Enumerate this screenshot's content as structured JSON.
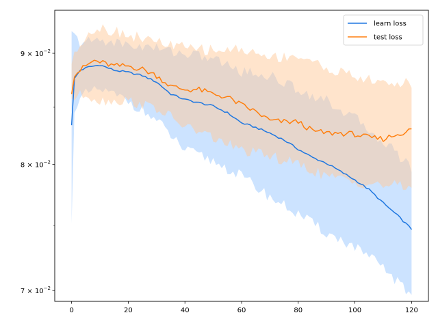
{
  "chart_data": {
    "type": "line",
    "title": "",
    "xlabel": "",
    "ylabel": "",
    "yscale": "log",
    "xlim": [
      -5.95,
      125.95
    ],
    "ylim": [
      0.0692,
      0.0942
    ],
    "x_ticks": [
      0,
      20,
      40,
      60,
      80,
      100,
      120
    ],
    "x_tick_labels": [
      "0",
      "20",
      "40",
      "60",
      "80",
      "100",
      "120"
    ],
    "y_ticks": [
      0.07,
      0.08,
      0.09
    ],
    "y_tick_labels": [
      {
        "mantissa": "7",
        "exponent": "−2"
      },
      {
        "mantissa": "8",
        "exponent": "−2"
      },
      {
        "mantissa": "9",
        "exponent": "−2"
      }
    ],
    "legend_position": "top-right",
    "grid": false,
    "x_count": 120,
    "series": [
      {
        "name": "learn loss",
        "color": "#1f77e0",
        "band_color": "#99c8ff",
        "keypoints": [
          [
            0,
            0.0834
          ],
          [
            1,
            0.0876
          ],
          [
            3,
            0.0884
          ],
          [
            6,
            0.0887
          ],
          [
            10,
            0.0889
          ],
          [
            15,
            0.0884
          ],
          [
            20,
            0.0882
          ],
          [
            25,
            0.0879
          ],
          [
            30,
            0.0873
          ],
          [
            35,
            0.0862
          ],
          [
            40,
            0.0857
          ],
          [
            45,
            0.0854
          ],
          [
            50,
            0.0851
          ],
          [
            55,
            0.0845
          ],
          [
            60,
            0.0836
          ],
          [
            65,
            0.0832
          ],
          [
            70,
            0.0827
          ],
          [
            75,
            0.0821
          ],
          [
            80,
            0.0813
          ],
          [
            85,
            0.0806
          ],
          [
            90,
            0.0801
          ],
          [
            95,
            0.0794
          ],
          [
            100,
            0.0787
          ],
          [
            105,
            0.0779
          ],
          [
            110,
            0.0768
          ],
          [
            115,
            0.0758
          ],
          [
            120,
            0.0747
          ]
        ],
        "lower_keypoints": [
          [
            0,
            0.0749
          ],
          [
            1,
            0.085
          ],
          [
            5,
            0.0862
          ],
          [
            10,
            0.0866
          ],
          [
            20,
            0.0856
          ],
          [
            30,
            0.0838
          ],
          [
            40,
            0.0812
          ],
          [
            50,
            0.0803
          ],
          [
            60,
            0.079
          ],
          [
            70,
            0.0773
          ],
          [
            80,
            0.0759
          ],
          [
            90,
            0.0744
          ],
          [
            100,
            0.0733
          ],
          [
            110,
            0.0717
          ],
          [
            120,
            0.0696
          ]
        ],
        "upper_keypoints": [
          [
            0,
            0.0919
          ],
          [
            3,
            0.091
          ],
          [
            10,
            0.0913
          ],
          [
            20,
            0.0908
          ],
          [
            30,
            0.0905
          ],
          [
            40,
            0.09
          ],
          [
            50,
            0.0895
          ],
          [
            60,
            0.0883
          ],
          [
            70,
            0.0879
          ],
          [
            80,
            0.0866
          ],
          [
            90,
            0.0856
          ],
          [
            100,
            0.084
          ],
          [
            110,
            0.082
          ],
          [
            120,
            0.0798
          ]
        ]
      },
      {
        "name": "test loss",
        "color": "#ff7f0e",
        "band_color": "#ffc99a",
        "keypoints": [
          [
            0,
            0.0862
          ],
          [
            1,
            0.088
          ],
          [
            5,
            0.0888
          ],
          [
            8,
            0.0893
          ],
          [
            15,
            0.0888
          ],
          [
            20,
            0.0888
          ],
          [
            25,
            0.0885
          ],
          [
            30,
            0.0879
          ],
          [
            35,
            0.0869
          ],
          [
            40,
            0.0866
          ],
          [
            45,
            0.0866
          ],
          [
            50,
            0.0862
          ],
          [
            55,
            0.0859
          ],
          [
            60,
            0.0852
          ],
          [
            65,
            0.0846
          ],
          [
            70,
            0.0838
          ],
          [
            75,
            0.0837
          ],
          [
            80,
            0.0837
          ],
          [
            85,
            0.0829
          ],
          [
            90,
            0.0827
          ],
          [
            95,
            0.0827
          ],
          [
            100,
            0.0826
          ],
          [
            105,
            0.0823
          ],
          [
            110,
            0.0822
          ],
          [
            115,
            0.0826
          ],
          [
            120,
            0.083
          ]
        ],
        "lower_keypoints": [
          [
            0,
            0.0858
          ],
          [
            5,
            0.0862
          ],
          [
            10,
            0.0856
          ],
          [
            20,
            0.0856
          ],
          [
            30,
            0.0849
          ],
          [
            40,
            0.0833
          ],
          [
            50,
            0.0823
          ],
          [
            60,
            0.0812
          ],
          [
            70,
            0.0807
          ],
          [
            80,
            0.08
          ],
          [
            90,
            0.079
          ],
          [
            100,
            0.0785
          ],
          [
            110,
            0.0783
          ],
          [
            120,
            0.0781
          ]
        ],
        "upper_keypoints": [
          [
            0,
            0.0892
          ],
          [
            5,
            0.0919
          ],
          [
            10,
            0.0925
          ],
          [
            20,
            0.0918
          ],
          [
            30,
            0.0911
          ],
          [
            40,
            0.0905
          ],
          [
            50,
            0.0903
          ],
          [
            60,
            0.0904
          ],
          [
            70,
            0.0896
          ],
          [
            80,
            0.0898
          ],
          [
            90,
            0.0886
          ],
          [
            100,
            0.0878
          ],
          [
            110,
            0.0872
          ],
          [
            120,
            0.0872
          ]
        ]
      }
    ]
  }
}
